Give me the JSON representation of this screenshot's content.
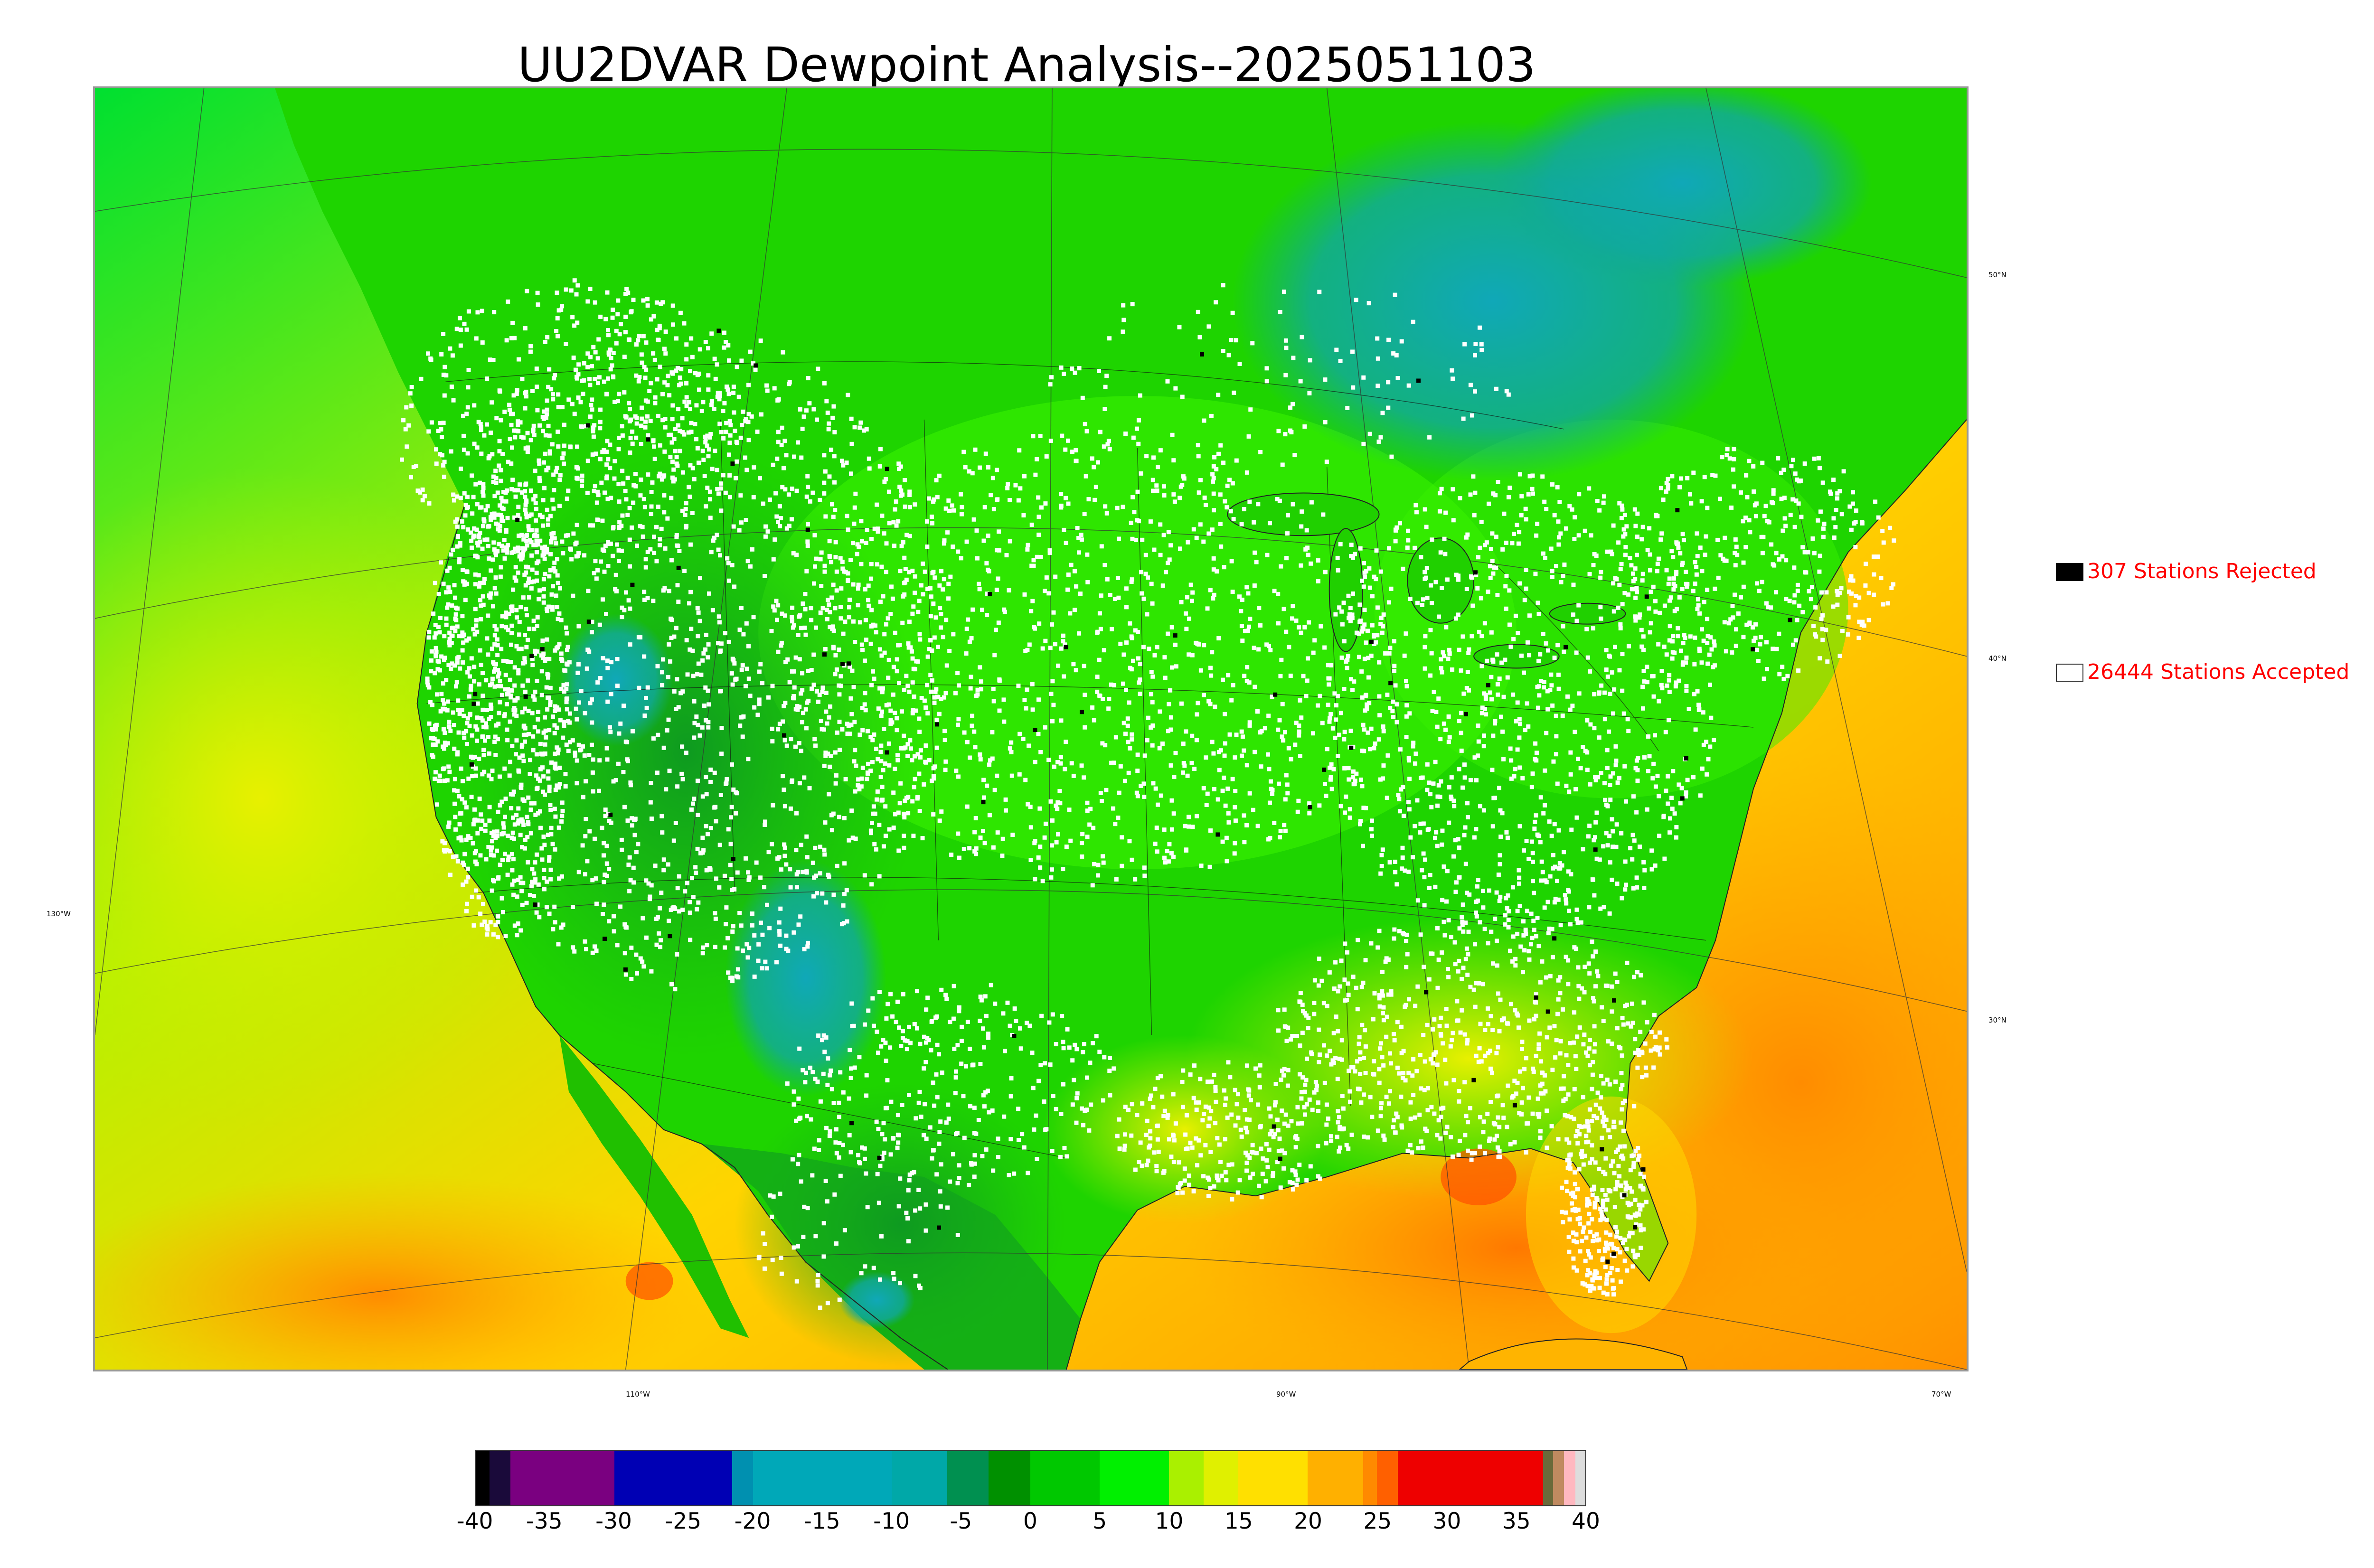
{
  "title": "UU2DVAR Dewpoint Analysis--2025051103",
  "legend": {
    "rejected": {
      "label": "307 Stations Rejected",
      "color": "#000000"
    },
    "accepted": {
      "label": "26444 Stations Accepted",
      "color": "#ffffff"
    }
  },
  "latitude_labels": [
    "50°N",
    "40°N",
    "30°N"
  ],
  "longitude_labels": [
    "130°W",
    "110°W",
    "90°W",
    "70°W"
  ],
  "colorbar": {
    "ticks": [
      "-40",
      "-35",
      "-30",
      "-25",
      "-20",
      "-15",
      "-10",
      "-5",
      "0",
      "5",
      "10",
      "15",
      "20",
      "25",
      "30",
      "35",
      "40"
    ],
    "range": [
      -40,
      40
    ],
    "bands": [
      {
        "from": -40,
        "to": -39,
        "color": "#000000"
      },
      {
        "from": -39,
        "to": -37.5,
        "color": "#1a0a3a"
      },
      {
        "from": -37.5,
        "to": -30,
        "color": "#7a0080"
      },
      {
        "from": -30,
        "to": -21.5,
        "color": "#0000b4"
      },
      {
        "from": -21.5,
        "to": -20,
        "color": "#0090b0"
      },
      {
        "from": -20,
        "to": -10,
        "color": "#00a8b8"
      },
      {
        "from": -10,
        "to": -6,
        "color": "#00a8a8"
      },
      {
        "from": -6,
        "to": -3,
        "color": "#009050"
      },
      {
        "from": -3,
        "to": 0,
        "color": "#009000"
      },
      {
        "from": 0,
        "to": 5,
        "color": "#00c800"
      },
      {
        "from": 5,
        "to": 10,
        "color": "#00f000"
      },
      {
        "from": 10,
        "to": 12.5,
        "color": "#aaf000"
      },
      {
        "from": 12.5,
        "to": 15,
        "color": "#e0f000"
      },
      {
        "from": 15,
        "to": 20,
        "color": "#ffe000"
      },
      {
        "from": 20,
        "to": 24,
        "color": "#ffb000"
      },
      {
        "from": 24,
        "to": 25,
        "color": "#ff8a00"
      },
      {
        "from": 25,
        "to": 26.5,
        "color": "#ff6000"
      },
      {
        "from": 26.5,
        "to": 37,
        "color": "#ee0000"
      },
      {
        "from": 37,
        "to": 37.7,
        "color": "#6a6a3a"
      },
      {
        "from": 37.7,
        "to": 38.5,
        "color": "#c08a60"
      },
      {
        "from": 38.5,
        "to": 39.3,
        "color": "#ffb8c0"
      },
      {
        "from": 39.3,
        "to": 40,
        "color": "#dddddd"
      }
    ]
  },
  "colors": {
    "ocean_warm": "#ff9a00",
    "ocean_mid": "#ffd000",
    "ocean_cool": "#c8f000",
    "land_green": "#1ed400",
    "land_bright": "#38f000",
    "land_dark": "#10a810",
    "cold_teal": "#10a8b0",
    "hot_red": "#ff5000"
  }
}
